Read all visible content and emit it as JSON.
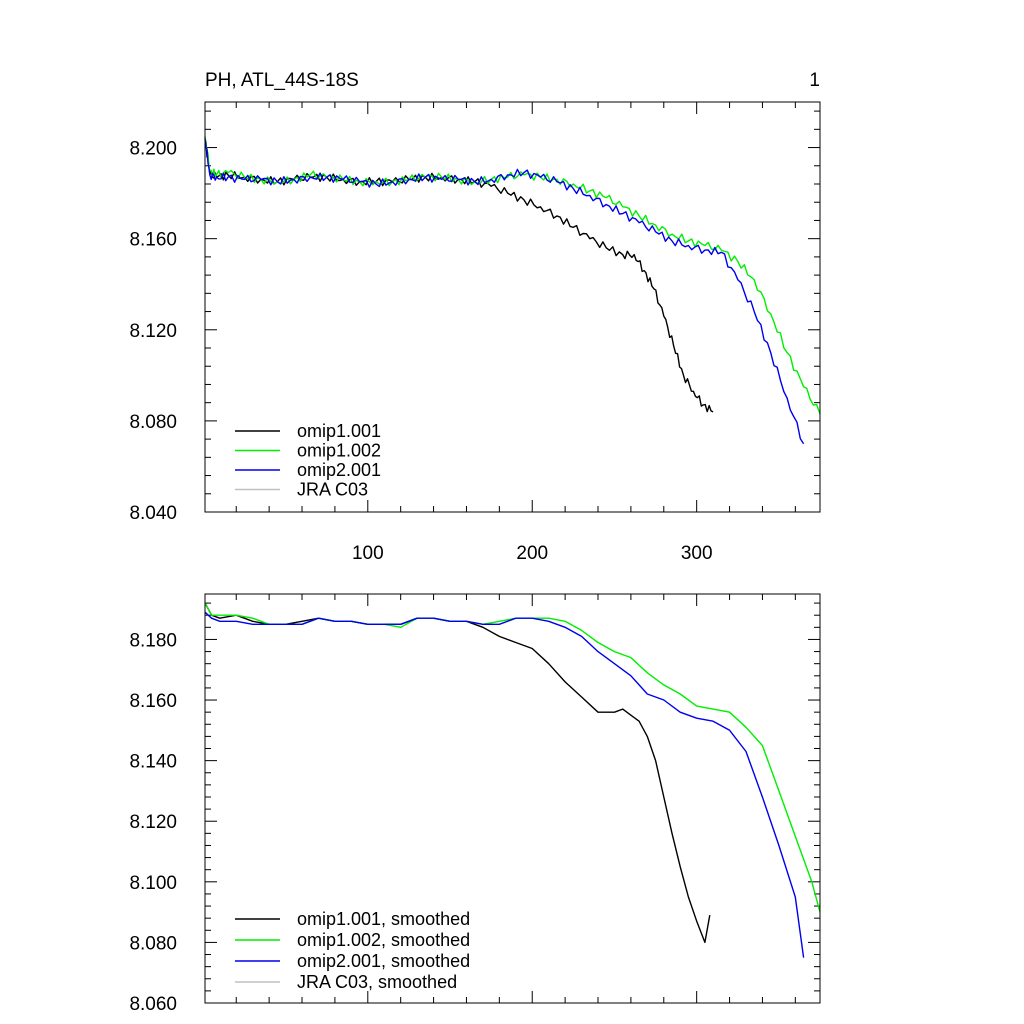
{
  "figure": {
    "title_left": "PH, ATL_44S-18S",
    "title_right": "1"
  },
  "colors": {
    "omip1_001": "#000000",
    "omip1_002": "#00ee00",
    "omip2_001": "#0000ee",
    "jra_c03": "#c0c0c0"
  },
  "chart_data": [
    {
      "type": "line",
      "title": "PH, ATL_44S-18S",
      "xlim": [
        1,
        375
      ],
      "ylim": [
        8.04,
        8.22
      ],
      "x_ticks": [
        100,
        200,
        300
      ],
      "x_tick_labels": [
        "100",
        "200",
        "300"
      ],
      "y_ticks": [
        8.04,
        8.08,
        8.12,
        8.16,
        8.2
      ],
      "y_tick_labels": [
        "8.040",
        "8.080",
        "8.120",
        "8.160",
        "8.200"
      ],
      "legend": "bottom-left",
      "series": [
        {
          "name": "omip1.001",
          "color": "#000000",
          "x": [
            1,
            4,
            8,
            15,
            25,
            35,
            45,
            55,
            65,
            75,
            85,
            95,
            105,
            115,
            125,
            135,
            145,
            155,
            165,
            175,
            185,
            195,
            205,
            215,
            225,
            235,
            245,
            255,
            262,
            268,
            274,
            280,
            286,
            292,
            298,
            304,
            310
          ],
          "y": [
            8.204,
            8.188,
            8.187,
            8.188,
            8.187,
            8.186,
            8.185,
            8.186,
            8.187,
            8.187,
            8.186,
            8.185,
            8.185,
            8.185,
            8.186,
            8.187,
            8.187,
            8.186,
            8.185,
            8.183,
            8.18,
            8.177,
            8.174,
            8.17,
            8.165,
            8.16,
            8.156,
            8.153,
            8.153,
            8.146,
            8.138,
            8.126,
            8.113,
            8.1,
            8.093,
            8.087,
            8.084
          ]
        },
        {
          "name": "omip1.002",
          "color": "#00ee00",
          "x": [
            1,
            4,
            8,
            15,
            25,
            35,
            45,
            55,
            65,
            75,
            85,
            95,
            105,
            115,
            125,
            135,
            145,
            155,
            165,
            175,
            185,
            195,
            205,
            215,
            225,
            235,
            245,
            255,
            265,
            275,
            285,
            295,
            305,
            315,
            325,
            335,
            345,
            355,
            365,
            375
          ],
          "y": [
            8.205,
            8.19,
            8.188,
            8.189,
            8.187,
            8.186,
            8.185,
            8.186,
            8.188,
            8.187,
            8.186,
            8.185,
            8.185,
            8.185,
            8.186,
            8.187,
            8.187,
            8.186,
            8.185,
            8.186,
            8.187,
            8.188,
            8.187,
            8.186,
            8.184,
            8.181,
            8.178,
            8.174,
            8.17,
            8.166,
            8.162,
            8.159,
            8.157,
            8.155,
            8.15,
            8.142,
            8.127,
            8.11,
            8.095,
            8.083
          ]
        },
        {
          "name": "omip2.001",
          "color": "#0000ee",
          "x": [
            1,
            4,
            8,
            15,
            25,
            35,
            45,
            55,
            65,
            75,
            85,
            95,
            105,
            115,
            125,
            135,
            145,
            155,
            165,
            175,
            185,
            195,
            205,
            215,
            225,
            235,
            245,
            255,
            265,
            275,
            285,
            295,
            305,
            315,
            325,
            335,
            345,
            355,
            365
          ],
          "y": [
            8.204,
            8.188,
            8.187,
            8.187,
            8.186,
            8.186,
            8.185,
            8.186,
            8.187,
            8.187,
            8.186,
            8.185,
            8.184,
            8.185,
            8.186,
            8.187,
            8.186,
            8.186,
            8.185,
            8.186,
            8.188,
            8.189,
            8.187,
            8.185,
            8.182,
            8.179,
            8.175,
            8.171,
            8.167,
            8.163,
            8.159,
            8.157,
            8.155,
            8.154,
            8.142,
            8.128,
            8.11,
            8.09,
            8.07
          ]
        }
      ],
      "legend_entries": [
        {
          "label": "omip1.001",
          "color": "#000000"
        },
        {
          "label": "omip1.002",
          "color": "#00ee00"
        },
        {
          "label": "omip2.001",
          "color": "#0000ee"
        },
        {
          "label": "JRA C03",
          "color": "#c0c0c0"
        }
      ]
    },
    {
      "type": "line",
      "title": "",
      "xlim": [
        1,
        375
      ],
      "ylim": [
        8.06,
        8.195
      ],
      "x_ticks": [
        100,
        200,
        300
      ],
      "y_ticks": [
        8.06,
        8.08,
        8.1,
        8.12,
        8.14,
        8.16,
        8.18
      ],
      "y_tick_labels": [
        "8.060",
        "8.080",
        "8.100",
        "8.120",
        "8.140",
        "8.160",
        "8.180"
      ],
      "legend": "bottom-left",
      "series": [
        {
          "name": "omip1.001, smoothed",
          "color": "#000000",
          "x": [
            1,
            5,
            10,
            20,
            30,
            40,
            50,
            60,
            70,
            80,
            90,
            100,
            110,
            120,
            130,
            140,
            150,
            160,
            170,
            180,
            190,
            200,
            210,
            220,
            230,
            240,
            250,
            255,
            260,
            265,
            270,
            275,
            280,
            285,
            290,
            295,
            300,
            305,
            308
          ],
          "y": [
            8.192,
            8.188,
            8.187,
            8.188,
            8.186,
            8.185,
            8.185,
            8.186,
            8.187,
            8.186,
            8.186,
            8.185,
            8.185,
            8.185,
            8.187,
            8.187,
            8.186,
            8.186,
            8.184,
            8.181,
            8.179,
            8.177,
            8.172,
            8.166,
            8.161,
            8.156,
            8.156,
            8.157,
            8.155,
            8.153,
            8.148,
            8.14,
            8.128,
            8.116,
            8.105,
            8.095,
            8.087,
            8.08,
            8.089
          ]
        },
        {
          "name": "omip1.002, smoothed",
          "color": "#00ee00",
          "x": [
            1,
            5,
            10,
            20,
            30,
            40,
            50,
            60,
            70,
            80,
            90,
            100,
            110,
            120,
            130,
            140,
            150,
            160,
            170,
            180,
            190,
            200,
            210,
            220,
            230,
            240,
            250,
            260,
            270,
            280,
            290,
            300,
            310,
            320,
            330,
            340,
            350,
            360,
            370,
            375
          ],
          "y": [
            8.192,
            8.188,
            8.188,
            8.188,
            8.187,
            8.185,
            8.185,
            8.185,
            8.187,
            8.186,
            8.186,
            8.185,
            8.185,
            8.184,
            8.187,
            8.187,
            8.186,
            8.186,
            8.185,
            8.186,
            8.187,
            8.187,
            8.187,
            8.186,
            8.183,
            8.179,
            8.176,
            8.174,
            8.169,
            8.165,
            8.162,
            8.158,
            8.157,
            8.156,
            8.151,
            8.145,
            8.13,
            8.115,
            8.1,
            8.09
          ]
        },
        {
          "name": "omip2.001, smoothed",
          "color": "#0000ee",
          "x": [
            1,
            5,
            10,
            20,
            30,
            40,
            50,
            60,
            70,
            80,
            90,
            100,
            110,
            120,
            130,
            140,
            150,
            160,
            170,
            180,
            190,
            200,
            210,
            220,
            230,
            240,
            250,
            260,
            270,
            280,
            290,
            300,
            310,
            320,
            330,
            340,
            350,
            360,
            365
          ],
          "y": [
            8.189,
            8.187,
            8.186,
            8.186,
            8.185,
            8.185,
            8.185,
            8.185,
            8.187,
            8.186,
            8.186,
            8.185,
            8.185,
            8.185,
            8.187,
            8.187,
            8.186,
            8.186,
            8.185,
            8.185,
            8.187,
            8.187,
            8.186,
            8.184,
            8.181,
            8.176,
            8.172,
            8.168,
            8.162,
            8.16,
            8.156,
            8.154,
            8.153,
            8.15,
            8.143,
            8.128,
            8.112,
            8.095,
            8.075
          ]
        }
      ],
      "legend_entries": [
        {
          "label": "omip1.001, smoothed",
          "color": "#000000"
        },
        {
          "label": "omip1.002, smoothed",
          "color": "#00ee00"
        },
        {
          "label": "omip2.001, smoothed",
          "color": "#0000ee"
        },
        {
          "label": "JRA C03, smoothed",
          "color": "#c0c0c0"
        }
      ]
    }
  ]
}
